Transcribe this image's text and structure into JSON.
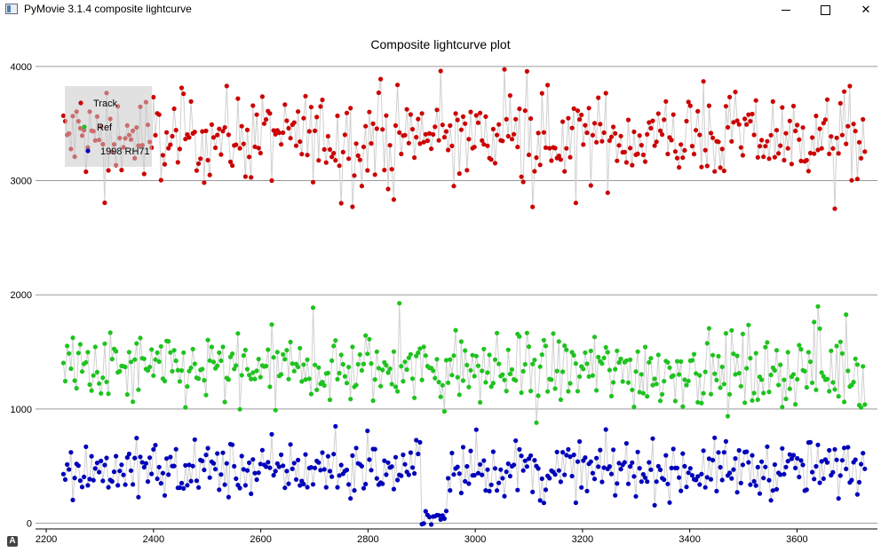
{
  "window": {
    "title": "PyMovie 3.1.4 composite lightcurve",
    "minimize_icon": "minimize-icon",
    "maximize_icon": "maximize-icon",
    "close_icon": "close-icon"
  },
  "autoscale_badge": "A",
  "chart_data": {
    "type": "scatter",
    "title": "Composite lightcurve plot",
    "xlabel": "",
    "ylabel": "",
    "xlim": [
      2180,
      3750
    ],
    "ylim": [
      -50,
      4100
    ],
    "xticks": [
      2200,
      2400,
      2600,
      2800,
      3000,
      3200,
      3400,
      3600
    ],
    "yticks": [
      0,
      1000,
      2000,
      3000,
      4000
    ],
    "grid": "horizontal",
    "connecting_lines": true,
    "legend_placement": "top-left",
    "x_range": [
      2232,
      3728
    ],
    "series": [
      {
        "name": "Track",
        "color": "#cc0000",
        "baseline": 3380,
        "spread": 185,
        "outlier_low": 2700,
        "outlier_high": 4010
      },
      {
        "name": "Ref",
        "color": "#1ec31e",
        "baseline": 1340,
        "spread": 160,
        "outlier_low": 860,
        "outlier_high": 1950
      },
      {
        "name": "1998 RH71",
        "color": "#0000bb",
        "baseline": 470,
        "spread": 120,
        "outlier_low": 150,
        "outlier_high": 860,
        "event": {
          "start": 2900,
          "end": 2948,
          "level": 60
        }
      }
    ]
  }
}
